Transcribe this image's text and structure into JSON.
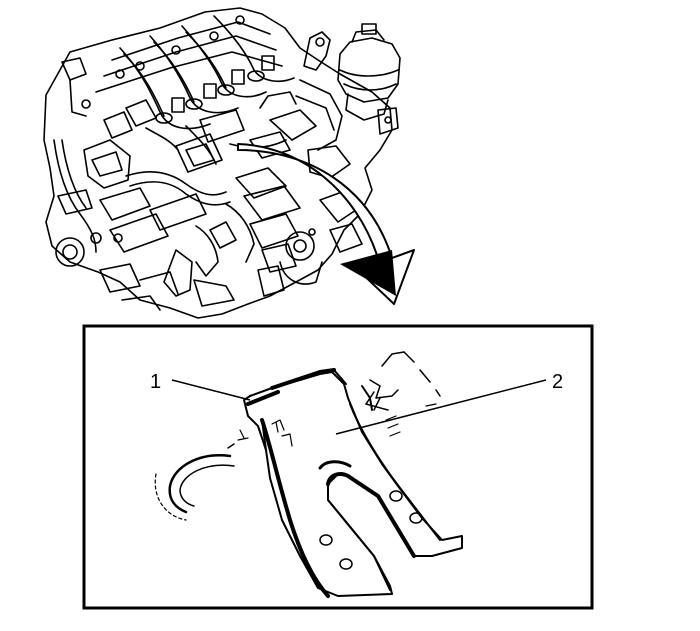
{
  "callouts": [
    {
      "id": "1",
      "label": "1"
    },
    {
      "id": "2",
      "label": "2"
    }
  ],
  "colors": {
    "ink": "#000000",
    "paper": "#ffffff"
  }
}
